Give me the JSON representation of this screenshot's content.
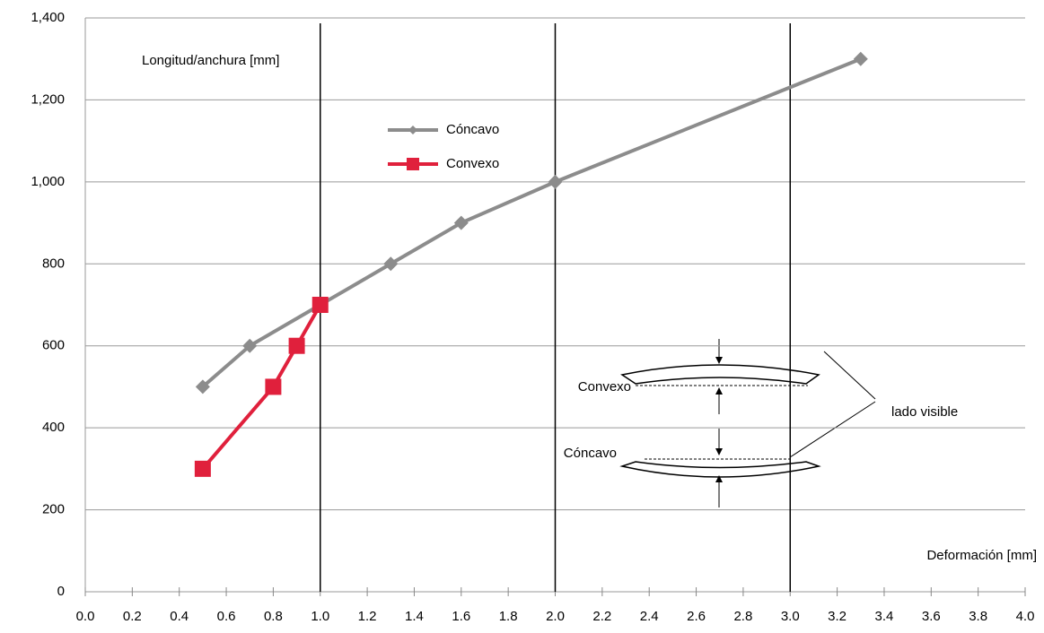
{
  "chart_data": {
    "type": "line",
    "y_label": "Longitud/anchura [mm]",
    "x_label": "Deformación [mm]",
    "xlim": [
      0,
      4
    ],
    "ylim": [
      0,
      1400
    ],
    "xticks": [
      {
        "value": 0,
        "label": "0.0"
      },
      0.2,
      0.4,
      0.6,
      0.8,
      {
        "value": 1,
        "label": "1.0"
      },
      1.2,
      1.4,
      1.6,
      1.8,
      {
        "value": 2,
        "label": "2.0"
      },
      2.2,
      2.4,
      2.6,
      2.8,
      {
        "value": 3,
        "label": "3.0"
      },
      3.2,
      3.4,
      3.6,
      3.8,
      {
        "value": 4,
        "label": "4.0"
      }
    ],
    "yticks": [
      0,
      200,
      400,
      600,
      800,
      {
        "value": 1000,
        "label": "1,000"
      },
      {
        "value": 1200,
        "label": "1,200"
      },
      {
        "value": 1400,
        "label": "1,400"
      }
    ],
    "grid": true,
    "reference_lines": [
      1,
      2,
      3
    ],
    "series": [
      {
        "name": "Cóncavo",
        "color": "#8c8c8c",
        "marker": "diamond",
        "x": [
          0.5,
          0.7,
          1.0,
          1.3,
          1.6,
          2.0,
          3.3
        ],
        "values": [
          500,
          600,
          700,
          800,
          900,
          1000,
          1300
        ]
      },
      {
        "name": "Convexo",
        "color": "#e0203c",
        "marker": "square",
        "x": [
          0.5,
          0.8,
          0.9,
          1.0
        ],
        "values": [
          300,
          500,
          600,
          700
        ]
      }
    ],
    "annotations": [
      "Convexo",
      "Cóncavo",
      "lado visible"
    ]
  }
}
